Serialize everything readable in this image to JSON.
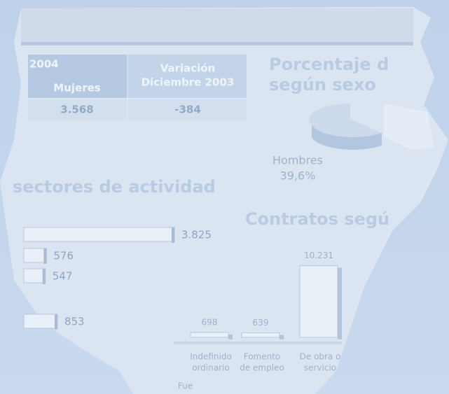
{
  "table": {
    "header": [
      "2004",
      "Mujeres",
      "Variación",
      "Diciembre 2003"
    ],
    "rows": [
      [
        "3.568",
        "-384"
      ]
    ]
  },
  "pie": {
    "title": [
      "Porcentaje d",
      "según sexo"
    ],
    "label": "Hombres",
    "value_label": "39,6%"
  },
  "sectors": {
    "title": "sectores de actividad",
    "values": [
      3825,
      576,
      547,
      853
    ],
    "value_labels": [
      "3.825",
      "576",
      "547",
      "853"
    ]
  },
  "contracts": {
    "title": "Contratos segú",
    "categories": [
      [
        "Indefinido",
        "ordinario"
      ],
      [
        "Fomento",
        "de empleo"
      ],
      [
        "De obra o",
        "servicio"
      ]
    ],
    "values": [
      698,
      639,
      10231
    ],
    "value_labels": [
      "698",
      "639",
      "10.231"
    ]
  },
  "source": "Fue"
}
